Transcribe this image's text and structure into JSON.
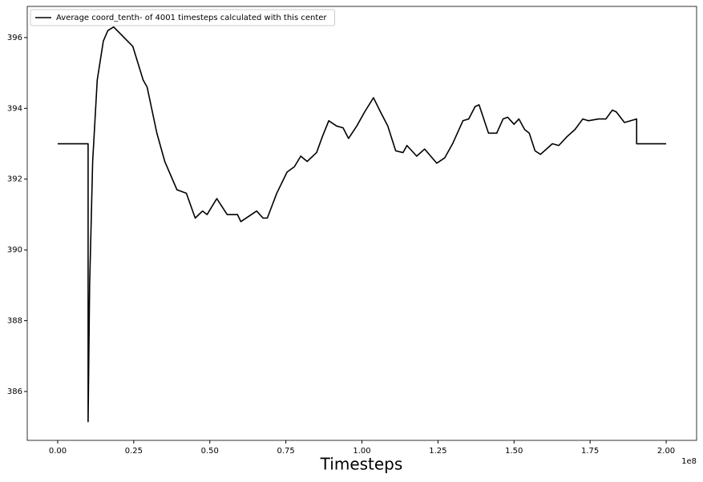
{
  "chart_data": {
    "type": "line",
    "x_label": "Timesteps",
    "x_offset_label": "1e8",
    "xlim": [
      -0.1,
      2.1
    ],
    "ylim": [
      384.62,
      396.88
    ],
    "xticks": [
      {
        "value": 0,
        "label": "0.00"
      },
      0.25,
      {
        "value": 0.5,
        "label": "0.50"
      },
      0.75,
      {
        "value": 1,
        "label": "1.00"
      },
      1.25,
      {
        "value": 1.5,
        "label": "1.50"
      },
      1.75,
      {
        "value": 2,
        "label": "2.00"
      }
    ],
    "yticks": [
      386,
      388,
      390,
      392,
      394,
      396
    ],
    "grid": false,
    "legend": "upper left",
    "x": [
      0,
      0.1,
      0.1,
      0.105,
      0.115,
      0.13,
      0.15,
      0.165,
      0.184,
      0.247,
      0.281,
      0.294,
      0.326,
      0.352,
      0.392,
      0.423,
      0.452,
      0.476,
      0.491,
      0.523,
      0.557,
      0.591,
      0.602,
      0.654,
      0.675,
      0.689,
      0.72,
      0.754,
      0.778,
      0.799,
      0.82,
      0.851,
      0.87,
      0.891,
      0.917,
      0.938,
      0.956,
      0.983,
      1.009,
      1.038,
      1.061,
      1.085,
      1.111,
      1.135,
      1.148,
      1.18,
      1.206,
      1.246,
      1.272,
      1.298,
      1.332,
      1.351,
      1.372,
      1.385,
      1.416,
      1.443,
      1.464,
      1.479,
      1.5,
      1.516,
      1.535,
      1.55,
      1.569,
      1.587,
      1.626,
      1.647,
      1.674,
      1.7,
      1.726,
      1.744,
      1.778,
      1.802,
      1.823,
      1.836,
      1.863,
      1.903,
      1.903,
      2.0
    ],
    "series": [
      {
        "name": "Average coord_tenth- of 4001 timesteps calculated with this center",
        "color": "#000000",
        "values": [
          393,
          393,
          385.15,
          389,
          392.5,
          394.8,
          395.9,
          396.2,
          396.3,
          395.75,
          394.8,
          394.6,
          393.3,
          392.5,
          391.7,
          391.6,
          390.9,
          391.1,
          391.0,
          391.45,
          391.0,
          391.0,
          390.8,
          391.1,
          390.9,
          390.9,
          391.6,
          392.2,
          392.35,
          392.65,
          392.5,
          392.75,
          393.2,
          393.65,
          393.5,
          393.45,
          393.15,
          393.5,
          393.9,
          394.3,
          393.9,
          393.5,
          392.8,
          392.75,
          392.95,
          392.65,
          392.85,
          392.45,
          392.6,
          393.0,
          393.65,
          393.7,
          394.05,
          394.1,
          393.3,
          393.3,
          393.7,
          393.75,
          393.55,
          393.7,
          393.4,
          393.3,
          392.8,
          392.7,
          393.0,
          392.95,
          393.2,
          393.4,
          393.7,
          393.65,
          393.7,
          393.7,
          393.95,
          393.9,
          393.6,
          393.7,
          393.0,
          393.0
        ]
      }
    ]
  }
}
